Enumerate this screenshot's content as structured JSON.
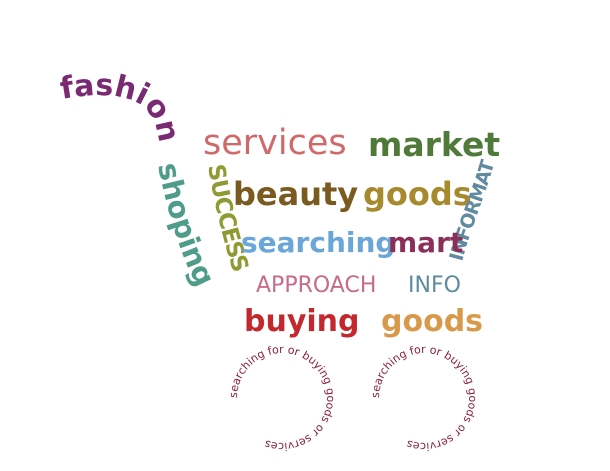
{
  "colors": {
    "purple": "#7a2a73",
    "teal": "#4f9c8a",
    "olive": "#8e9b32",
    "salmon": "#d06a6a",
    "green": "#4f7a3a",
    "brown": "#7a5a1e",
    "gold": "#a88a2e",
    "blue": "#6aa6d8",
    "magenta": "#8a2f5a",
    "pink": "#c86a8a",
    "slate": "#5f8aa0",
    "red": "#c4282f",
    "orange": "#d89a4a",
    "wheel": "#8b1f3f"
  },
  "words": {
    "fashion": "fashion",
    "shoping": "shoping",
    "services": "services",
    "market": "market",
    "success": "SUCCESS",
    "beauty": "beauty",
    "goods1": "goods",
    "information": "INFORMATION",
    "searching": "searching",
    "mart": "mart",
    "approach": "APPROACH",
    "info": "INFO",
    "buying": "buying",
    "goods2": "goods"
  },
  "wheels": {
    "left": "searching for or buying goods or services",
    "right": "searching for or buying goods or services"
  }
}
